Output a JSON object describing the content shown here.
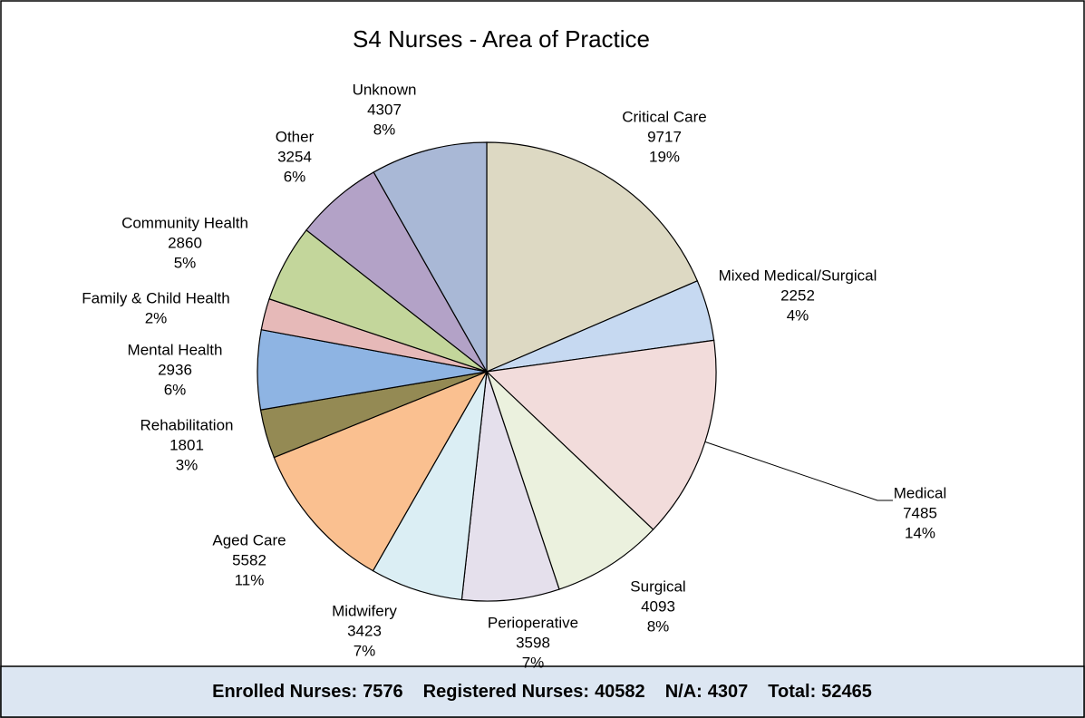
{
  "chart_data": {
    "type": "pie",
    "title": "S4 Nurses - Area of Practice",
    "categories": [
      "Critical Care",
      "Mixed Medical/Surgical",
      "Medical",
      "Surgical",
      "Perioperative",
      "Midwifery",
      "Aged Care",
      "Rehabilitation",
      "Mental Health",
      "Family & Child Health",
      "Community Health",
      "Other",
      "Unknown"
    ],
    "values": [
      9717,
      2252,
      7485,
      4093,
      3598,
      3423,
      5582,
      1801,
      2936,
      1157,
      2860,
      3254,
      4307
    ],
    "value_printed": [
      true,
      true,
      true,
      true,
      true,
      true,
      true,
      true,
      true,
      false,
      true,
      true,
      true
    ],
    "percents": [
      19,
      4,
      14,
      8,
      7,
      7,
      11,
      3,
      6,
      2,
      5,
      6,
      8
    ],
    "percent_labels": [
      "19%",
      "4%",
      "14%",
      "8%",
      "7%",
      "7%",
      "11%",
      "3%",
      "6%",
      "2%",
      "5%",
      "6%",
      "8%"
    ],
    "colors": [
      "#ddd9c3",
      "#c6d9f1",
      "#f2dcdb",
      "#ebf1de",
      "#e5e0ec",
      "#dbeef4",
      "#fac090",
      "#948a54",
      "#8eb4e3",
      "#e6b9b8",
      "#c3d69b",
      "#b3a2c7",
      "#a9b8d6"
    ],
    "footer": [
      {
        "label": "Enrolled Nurses:",
        "value": 7576
      },
      {
        "label": "Registered  Nurses:",
        "value": 40582
      },
      {
        "label": "N/A:",
        "value": 4307
      },
      {
        "label": "Total:",
        "value": 52465
      }
    ]
  }
}
